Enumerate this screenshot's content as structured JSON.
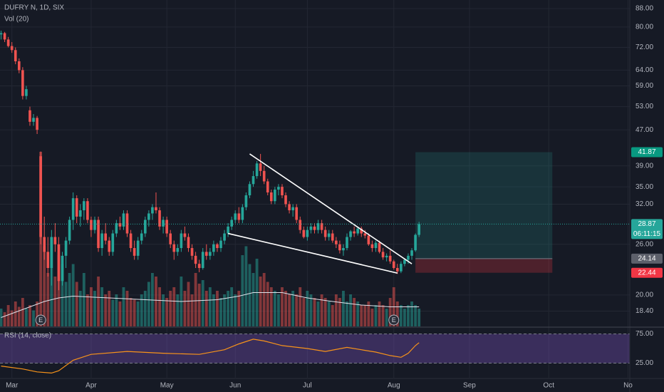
{
  "chart_data": {
    "type": "candlestick",
    "title": "DUFRY N, 1D, SIX",
    "volume_label": "Vol (20)",
    "rsi_label": "RSI (14, close)",
    "log_scale": true,
    "grid": true,
    "colors": {
      "up": "#26a69a",
      "down": "#ef5350"
    },
    "xlim": [
      -0.3,
      174.5
    ],
    "xticks": [
      {
        "value": 3,
        "label": "Mar"
      },
      {
        "value": 25,
        "label": "Apr"
      },
      {
        "value": 46,
        "label": "May"
      },
      {
        "value": 65,
        "label": "Jun"
      },
      {
        "value": 85,
        "label": "Jul"
      },
      {
        "value": 109,
        "label": "Aug"
      },
      {
        "value": 130,
        "label": "Sep"
      },
      {
        "value": 152,
        "label": "Oct"
      },
      {
        "value": 174,
        "label": "No"
      }
    ],
    "ylim": [
      17,
      92
    ],
    "yticks": [
      {
        "value": 88,
        "label": "88.00"
      },
      {
        "value": 80,
        "label": "80.00"
      },
      {
        "value": 72,
        "label": "72.00"
      },
      {
        "value": 64,
        "label": "64.00"
      },
      {
        "value": 59,
        "label": "59.00"
      },
      {
        "value": 53,
        "label": "53.00"
      },
      {
        "value": 47,
        "label": "47.00"
      },
      {
        "value": 39,
        "label": "39.00"
      },
      {
        "value": 35,
        "label": "35.00"
      },
      {
        "value": 32,
        "label": "32.00"
      },
      {
        "value": 26,
        "label": "26.00"
      },
      {
        "value": 20,
        "label": "20.00"
      },
      {
        "value": 18.4,
        "label": "18.40"
      }
    ],
    "candles": [
      [
        77,
        78.5,
        75,
        77.5
      ],
      [
        77.5,
        78,
        74,
        75
      ],
      [
        75,
        76,
        72,
        72.5
      ],
      [
        72.5,
        74,
        70,
        71
      ],
      [
        71,
        72,
        66,
        67
      ],
      [
        67,
        68,
        63,
        64
      ],
      [
        64,
        65,
        55,
        56
      ],
      [
        56,
        59,
        55,
        58
      ],
      [
        52,
        53,
        48,
        49
      ],
      [
        49,
        51,
        48,
        50
      ],
      [
        50,
        50.5,
        46,
        47
      ],
      [
        41,
        42,
        26,
        27
      ],
      [
        27,
        30,
        24,
        25
      ],
      [
        25,
        27,
        22,
        23
      ],
      [
        23,
        28,
        21,
        27
      ],
      [
        27,
        29,
        25,
        26
      ],
      [
        26,
        27,
        20.5,
        21.5
      ],
      [
        21.5,
        25,
        21,
        24.5
      ],
      [
        24.5,
        27,
        23,
        26.5
      ],
      [
        26.5,
        30,
        26,
        29.5
      ],
      [
        29.5,
        34,
        28,
        33
      ],
      [
        33,
        33.5,
        29,
        30
      ],
      [
        30,
        32,
        28.5,
        31
      ],
      [
        31,
        33,
        29.5,
        32.5
      ],
      [
        32.5,
        33,
        29,
        29.5
      ],
      [
        29.5,
        30,
        27,
        28
      ],
      [
        28,
        30,
        27.5,
        29.5
      ],
      [
        29.5,
        30,
        25,
        25.5
      ],
      [
        25.5,
        28,
        24.5,
        27.5
      ],
      [
        27.5,
        29,
        26,
        26.5
      ],
      [
        26.5,
        27,
        24.5,
        25
      ],
      [
        25,
        28,
        24.5,
        27.5
      ],
      [
        27.5,
        29.5,
        27,
        29
      ],
      [
        29,
        30,
        28,
        28.5
      ],
      [
        28.5,
        31,
        28,
        30.5
      ],
      [
        30.5,
        31,
        27,
        27.5
      ],
      [
        27.5,
        28,
        25,
        25.5
      ],
      [
        25.5,
        26.5,
        24,
        24.5
      ],
      [
        24.5,
        27,
        24,
        26.5
      ],
      [
        26.5,
        28,
        26,
        27.5
      ],
      [
        27.5,
        30,
        27,
        29.5
      ],
      [
        29.5,
        31,
        28.5,
        30.5
      ],
      [
        30.5,
        32,
        29.5,
        31.5
      ],
      [
        31.5,
        34,
        30.5,
        31
      ],
      [
        31,
        31.5,
        28,
        28.5
      ],
      [
        28.5,
        30,
        27.5,
        29.5
      ],
      [
        29.5,
        30,
        27,
        27.5
      ],
      [
        27.5,
        28,
        25.5,
        26
      ],
      [
        26,
        26.5,
        24,
        25
      ],
      [
        25,
        26,
        24.5,
        25.5
      ],
      [
        25.5,
        28,
        25,
        27.5
      ],
      [
        27.5,
        28.5,
        26.5,
        27
      ],
      [
        27,
        27.5,
        25,
        25.5
      ],
      [
        25.5,
        26,
        24,
        24.5
      ],
      [
        24.5,
        25,
        23,
        23.5
      ],
      [
        23.5,
        24,
        22.5,
        23
      ],
      [
        23,
        25.5,
        22.8,
        25
      ],
      [
        25,
        26,
        24,
        24.5
      ],
      [
        24.5,
        25.5,
        24,
        25
      ],
      [
        25,
        26.5,
        24.5,
        26
      ],
      [
        26,
        26.2,
        25,
        25.5
      ],
      [
        25.5,
        27,
        25,
        26.5
      ],
      [
        26.5,
        28,
        26,
        27.5
      ],
      [
        27.5,
        29,
        27,
        28.5
      ],
      [
        28.5,
        30,
        28,
        29.5
      ],
      [
        29.5,
        31,
        29,
        30.5
      ],
      [
        30.5,
        31.5,
        29,
        29.5
      ],
      [
        29.5,
        32,
        29,
        31.5
      ],
      [
        31.5,
        34,
        31,
        33.5
      ],
      [
        33.5,
        36,
        33,
        35.5
      ],
      [
        35.5,
        38,
        35,
        37
      ],
      [
        37,
        40,
        36.5,
        39.5
      ],
      [
        39.5,
        41.5,
        37,
        38
      ],
      [
        38,
        39,
        35.5,
        36
      ],
      [
        36,
        36.5,
        33.5,
        34
      ],
      [
        34,
        34.5,
        32,
        32.5
      ],
      [
        32.5,
        35,
        32,
        34.5
      ],
      [
        34.5,
        35.5,
        33.5,
        35
      ],
      [
        35,
        35.5,
        33,
        33.5
      ],
      [
        33.5,
        34,
        31.5,
        32
      ],
      [
        32,
        32.5,
        30.5,
        31
      ],
      [
        31,
        32,
        30,
        31.5
      ],
      [
        31.5,
        32,
        29,
        29.5
      ],
      [
        29.5,
        30,
        27.5,
        28
      ],
      [
        28,
        28.5,
        26.8,
        27
      ],
      [
        27,
        28.5,
        26.5,
        28
      ],
      [
        28,
        29,
        27.5,
        28.5
      ],
      [
        28.5,
        29,
        27.5,
        28
      ],
      [
        28,
        29.5,
        27.5,
        29
      ],
      [
        29,
        29.5,
        27.5,
        28
      ],
      [
        28,
        28.5,
        26.5,
        27
      ],
      [
        27,
        28,
        26.5,
        27.5
      ],
      [
        27.5,
        28,
        26.2,
        26.5
      ],
      [
        26.5,
        27,
        25.5,
        26
      ],
      [
        26,
        26.5,
        24.8,
        25.2
      ],
      [
        25.2,
        26,
        24.5,
        25.5
      ],
      [
        25.5,
        27.5,
        25.2,
        27
      ],
      [
        27,
        28,
        26.5,
        27.8
      ],
      [
        27.8,
        28.5,
        27,
        27.5
      ],
      [
        27.5,
        28.5,
        27.2,
        28.2
      ],
      [
        28.2,
        28.5,
        27,
        27.5
      ],
      [
        27.5,
        28,
        26.8,
        27.2
      ],
      [
        27.2,
        27.5,
        25.8,
        26
      ],
      [
        26,
        26.5,
        25,
        25.5
      ],
      [
        25.5,
        26.5,
        25,
        26.2
      ],
      [
        26.2,
        26.5,
        24.8,
        25
      ],
      [
        25,
        25.5,
        24,
        24.3
      ],
      [
        24.3,
        24.8,
        23.8,
        24.5
      ],
      [
        24.5,
        25.2,
        23.5,
        23.8
      ],
      [
        23.8,
        24,
        22.8,
        23
      ],
      [
        23,
        23.5,
        22.3,
        22.6
      ],
      [
        22.6,
        23.8,
        22.4,
        23.5
      ],
      [
        23.5,
        24.2,
        23.2,
        24
      ],
      [
        24,
        24.8,
        23.5,
        24.5
      ],
      [
        24.5,
        25.5,
        24,
        25.2
      ],
      [
        25.2,
        27.5,
        25,
        27.3
      ],
      [
        27.3,
        29.2,
        27,
        28.87
      ]
    ],
    "volume": {
      "ylim": [
        0,
        100
      ],
      "values": [
        10,
        8,
        12,
        9,
        14,
        11,
        16,
        10,
        12,
        9,
        14,
        98,
        45,
        30,
        50,
        28,
        40,
        35,
        25,
        30,
        35,
        25,
        20,
        30,
        18,
        22,
        20,
        28,
        22,
        18,
        20,
        15,
        18,
        14,
        22,
        20,
        16,
        15,
        14,
        18,
        20,
        25,
        30,
        28,
        22,
        18,
        16,
        20,
        22,
        18,
        28,
        20,
        25,
        18,
        30,
        24,
        26,
        20,
        22,
        18,
        20,
        16,
        18,
        20,
        22,
        18,
        20,
        40,
        45,
        35,
        30,
        38,
        28,
        30,
        25,
        22,
        20,
        18,
        22,
        20,
        18,
        20,
        18,
        22,
        16,
        20,
        18,
        16,
        14,
        18,
        16,
        14,
        12,
        18,
        16,
        20,
        14,
        18,
        16,
        14,
        12,
        12,
        14,
        10,
        12,
        14,
        12,
        10,
        16,
        22,
        14,
        12,
        10,
        12,
        14,
        12,
        10
      ],
      "ma": {
        "color": "#e0e3eb",
        "x": [
          0,
          8,
          12,
          16,
          20,
          30,
          40,
          50,
          60,
          66,
          70,
          78,
          85,
          92,
          100,
          108,
          116
        ],
        "values": [
          5,
          11,
          14,
          16,
          17,
          16,
          15,
          14,
          15,
          17,
          19,
          19,
          16,
          14,
          12,
          11,
          11
        ]
      }
    },
    "rsi": {
      "color": "#f7931a",
      "ylim": [
        0,
        83
      ],
      "yticks": [
        {
          "value": 75,
          "label": "75.00"
        },
        {
          "value": 25,
          "label": "25.00"
        }
      ],
      "x": [
        0,
        6,
        10,
        14,
        16,
        20,
        25,
        35,
        45,
        55,
        62,
        66,
        70,
        73,
        78,
        85,
        90,
        96,
        100,
        104,
        108,
        111,
        113,
        115,
        116
      ],
      "values": [
        20,
        15,
        10,
        8,
        12,
        30,
        40,
        45,
        42,
        40,
        48,
        58,
        66,
        63,
        55,
        50,
        45,
        52,
        48,
        44,
        38,
        35,
        42,
        55,
        60
      ]
    },
    "last_price": {
      "value": 28.87,
      "countdown": "06:11:15"
    },
    "position": {
      "x": [
        115,
        153
      ],
      "target": 41.87,
      "entry": 24.14,
      "stop": 22.44
    },
    "trendlines": [
      {
        "x": [
          69,
          114
        ],
        "y": [
          41.5,
          23.5
        ]
      },
      {
        "x": [
          63,
          110
        ],
        "y": [
          27.5,
          22.4
        ]
      }
    ],
    "earnings": [
      {
        "x": 11,
        "label": "E"
      },
      {
        "x": 109,
        "label": "E"
      }
    ]
  }
}
